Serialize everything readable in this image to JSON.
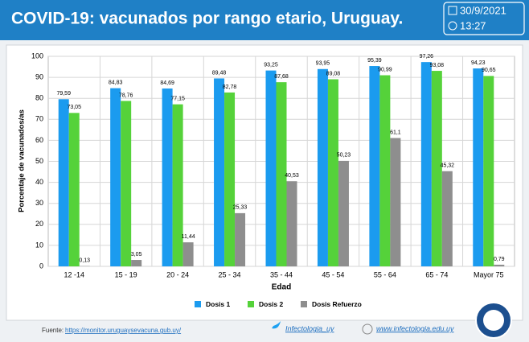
{
  "header": {
    "title": "COVID-19: vacunados por rango etario, Uruguay.",
    "date": "30/9/2021",
    "time": "13:27"
  },
  "chart_data": {
    "type": "bar",
    "categories": [
      "12 -14",
      "15 - 19",
      "20 - 24",
      "25 - 34",
      "35 - 44",
      "45 - 54",
      "55 - 64",
      "65 - 74",
      "Mayor 75"
    ],
    "series": [
      {
        "name": "Dosis 1",
        "color": "#1b9bef",
        "values": [
          79.59,
          84.83,
          84.69,
          89.48,
          93.25,
          93.95,
          95.39,
          97.26,
          94.23
        ],
        "value_labels": [
          "79,59",
          "84,83",
          "84,69",
          "89,48",
          "93,25",
          "93,95",
          "95,39",
          "97,26",
          "94,23"
        ]
      },
      {
        "name": "Dosis 2",
        "color": "#55d23a",
        "values": [
          73.05,
          78.76,
          77.15,
          82.78,
          87.68,
          89.08,
          90.99,
          93.08,
          90.65
        ],
        "value_labels": [
          "73,05",
          "78,76",
          "77,15",
          "82,78",
          "87,68",
          "89,08",
          "90,99",
          "93,08",
          "90,65"
        ]
      },
      {
        "name": "Dosis Refuerzo",
        "color": "#8e8e8e",
        "values": [
          0.13,
          3.05,
          11.44,
          25.33,
          40.53,
          50.23,
          61.1,
          45.32,
          0.79
        ],
        "value_labels": [
          "0,13",
          "3,05",
          "11,44",
          "25,33",
          "40,53",
          "50,23",
          "61,1",
          "45,32",
          "0,79"
        ]
      }
    ],
    "ylim": [
      0,
      100
    ],
    "yticks": [
      0,
      10,
      20,
      30,
      40,
      50,
      60,
      70,
      80,
      90,
      100
    ],
    "grid": true,
    "y_label": "Porcentaje de vacunados/as",
    "x_label": "Edad"
  },
  "footer": {
    "source_label": "Fuente:",
    "source_url": "https://monitor.uruguaysevacuna.gub.uy/",
    "twitter": "Infectologia_uy",
    "website": "www.infectologia.edu.uy"
  }
}
